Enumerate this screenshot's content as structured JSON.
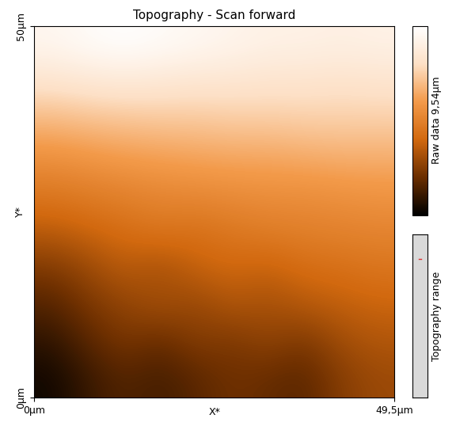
{
  "chart_data": {
    "type": "heatmap",
    "title": "Topography - Scan forward",
    "x_label": "X*",
    "y_label": "Y*",
    "xlim": [
      0,
      49.5
    ],
    "ylim": [
      0,
      50
    ],
    "xticks": [
      {
        "value": 0,
        "label": "0µm"
      },
      {
        "value": 49.5,
        "label": "49,5µm"
      }
    ],
    "yticks": [
      {
        "value": 0,
        "label": "0µm"
      },
      {
        "value": 50,
        "label": "50µm"
      }
    ],
    "colorbar_label": "Raw data 9,54µm",
    "colorbar_range": [
      0,
      9.54
    ],
    "range_widget_label": "Topography range",
    "cells": [
      [
        0.3,
        1.0,
        1.5,
        1.2,
        1.6,
        2.0,
        1.8,
        1.6,
        2.4,
        2.8
      ],
      [
        0.8,
        1.6,
        2.2,
        1.8,
        2.4,
        2.2,
        2.6,
        2.2,
        2.9,
        3.2
      ],
      [
        1.5,
        2.2,
        2.6,
        3.0,
        2.7,
        3.2,
        3.0,
        3.3,
        3.5,
        3.7
      ],
      [
        2.3,
        2.8,
        3.4,
        3.0,
        3.6,
        3.8,
        3.6,
        4.0,
        4.1,
        4.3
      ],
      [
        3.4,
        3.7,
        4.0,
        4.3,
        4.1,
        4.4,
        4.6,
        4.7,
        4.8,
        4.9
      ],
      [
        4.4,
        4.6,
        4.8,
        5.0,
        5.1,
        5.2,
        5.3,
        5.3,
        5.4,
        5.5
      ],
      [
        5.4,
        5.6,
        5.8,
        5.9,
        6.0,
        6.1,
        6.1,
        6.2,
        6.3,
        6.3
      ],
      [
        6.6,
        6.8,
        6.9,
        7.0,
        7.0,
        7.1,
        7.1,
        7.2,
        7.2,
        7.2
      ],
      [
        7.9,
        8.1,
        8.2,
        8.1,
        8.0,
        8.0,
        7.9,
        7.9,
        7.8,
        7.9
      ],
      [
        9.0,
        9.3,
        9.5,
        9.3,
        9.1,
        8.9,
        8.7,
        8.7,
        8.6,
        8.7
      ]
    ]
  }
}
